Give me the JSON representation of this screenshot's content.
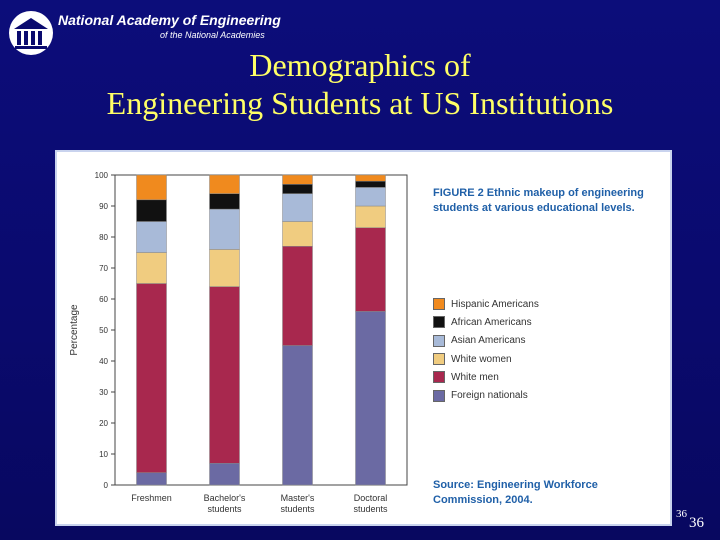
{
  "header": {
    "org_name": "National Academy of Engineering",
    "org_subtitle": "of the National Academies",
    "title_line1": "Demographics of",
    "title_line2": "Engineering Students at US Institutions"
  },
  "figure": {
    "caption": "FIGURE 2   Ethnic makeup of engineering students at various educational levels.",
    "source": "Source:  Engineering Workforce Commission, 2004."
  },
  "slide_number": "36",
  "slide_number_small": "36",
  "colors": {
    "background": "#0a0a6e",
    "title": "#ffff66",
    "figure_text": "#2060a8"
  },
  "chart_data": {
    "type": "bar",
    "stacked": true,
    "categories": [
      "Freshmen",
      "Bachelor's students",
      "Master's students",
      "Doctoral students"
    ],
    "ylabel": "Percentage",
    "ylim": [
      0,
      100
    ],
    "yticks": [
      0,
      10,
      20,
      30,
      40,
      50,
      60,
      70,
      80,
      90,
      100
    ],
    "legend_position": "right",
    "series": [
      {
        "name": "Foreign nationals",
        "color": "#6b6aa3",
        "values": [
          4,
          7,
          45,
          56
        ]
      },
      {
        "name": "White men",
        "color": "#a8284e",
        "values": [
          61,
          57,
          32,
          27
        ]
      },
      {
        "name": "White women",
        "color": "#f0cc80",
        "values": [
          10,
          12,
          8,
          7
        ]
      },
      {
        "name": "Asian Americans",
        "color": "#a8bad8",
        "values": [
          10,
          13,
          9,
          6
        ]
      },
      {
        "name": "African Americans",
        "color": "#111111",
        "values": [
          7,
          5,
          3,
          2
        ]
      },
      {
        "name": "Hispanic Americans",
        "color": "#f08a1e",
        "values": [
          8,
          6,
          3,
          2
        ]
      }
    ],
    "legend_order": [
      "Hispanic Americans",
      "African Americans",
      "Asian Americans",
      "White women",
      "White men",
      "Foreign nationals"
    ]
  }
}
